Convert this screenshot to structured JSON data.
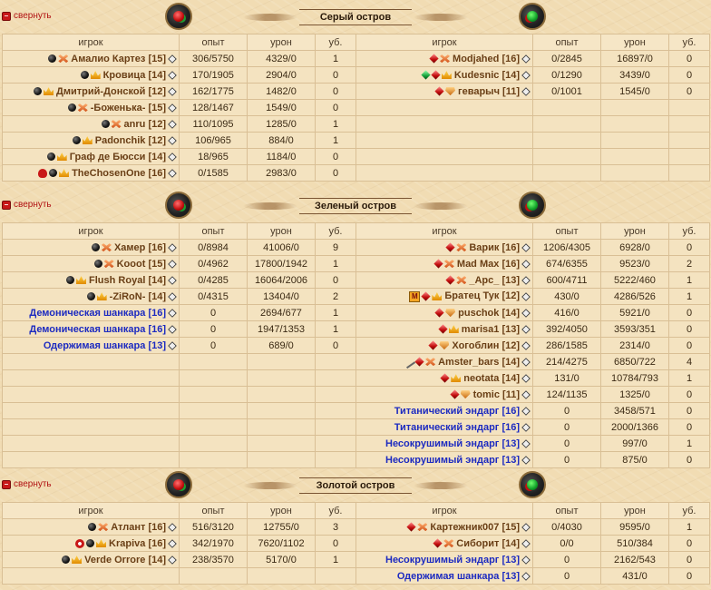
{
  "ui": {
    "collapse_label": "свернуть"
  },
  "columns": {
    "player": "игрок",
    "exp": "опыт",
    "damage": "урон",
    "kills": "уб."
  },
  "sections": [
    {
      "title": "Серый остров",
      "left": [
        {
          "name": "Амалио Картез",
          "level": "[15]",
          "exp": "306/5750",
          "damage": "4329/0",
          "kills": "1",
          "icons": [
            "black"
          ],
          "rank": "cross",
          "kind": "player"
        },
        {
          "name": "Кровица",
          "level": "[14]",
          "exp": "170/1905",
          "damage": "2904/0",
          "kills": "0",
          "icons": [
            "black"
          ],
          "rank": "crown",
          "kind": "player"
        },
        {
          "name": "Дмитрий-Донской",
          "level": "[12]",
          "exp": "162/1775",
          "damage": "1482/0",
          "kills": "0",
          "icons": [
            "black"
          ],
          "rank": "crown",
          "kind": "player"
        },
        {
          "name": "-Боженька-",
          "level": "[15]",
          "exp": "128/1467",
          "damage": "1549/0",
          "kills": "0",
          "icons": [
            "black"
          ],
          "rank": "cross",
          "kind": "player"
        },
        {
          "name": "anru",
          "level": "[12]",
          "exp": "110/1095",
          "damage": "1285/0",
          "kills": "1",
          "icons": [
            "black"
          ],
          "rank": "cross",
          "kind": "player"
        },
        {
          "name": "Padonchik",
          "level": "[12]",
          "exp": "106/965",
          "damage": "884/0",
          "kills": "1",
          "icons": [
            "black"
          ],
          "rank": "crown",
          "kind": "player"
        },
        {
          "name": "Граф де Бюсси",
          "level": "[14]",
          "exp": "18/965",
          "damage": "1184/0",
          "kills": "0",
          "icons": [
            "black"
          ],
          "rank": "crown",
          "kind": "player"
        },
        {
          "name": "TheChosenOne",
          "level": "[16]",
          "exp": "0/1585",
          "damage": "2983/0",
          "kills": "0",
          "icons": [
            "skull",
            "black"
          ],
          "rank": "crown",
          "kind": "player"
        }
      ],
      "right": [
        {
          "name": "Modjahed",
          "level": "[16]",
          "exp": "0/2845",
          "damage": "16897/0",
          "kills": "0",
          "icons": [
            "gem"
          ],
          "rank": "cross",
          "kind": "player"
        },
        {
          "name": "Kudesnic",
          "level": "[14]",
          "exp": "0/1290",
          "damage": "3439/0",
          "kills": "0",
          "icons": [
            "gem-green",
            "gem"
          ],
          "rank": "crown",
          "kind": "player"
        },
        {
          "name": "геварыч",
          "level": "[11]",
          "exp": "0/1001",
          "damage": "1545/0",
          "kills": "0",
          "icons": [
            "gem"
          ],
          "rank": "guard",
          "kind": "player"
        }
      ]
    },
    {
      "title": "Зеленый остров",
      "left": [
        {
          "name": "Хамер",
          "level": "[16]",
          "exp": "0/8984",
          "damage": "41006/0",
          "kills": "9",
          "icons": [
            "black"
          ],
          "rank": "cross",
          "kind": "player"
        },
        {
          "name": "Kooot",
          "level": "[15]",
          "exp": "0/4962",
          "damage": "17800/1942",
          "kills": "1",
          "icons": [
            "black"
          ],
          "rank": "cross",
          "kind": "player"
        },
        {
          "name": "Flush Royal",
          "level": "[14]",
          "exp": "0/4285",
          "damage": "16064/2006",
          "kills": "0",
          "icons": [
            "black"
          ],
          "rank": "crown",
          "kind": "player"
        },
        {
          "name": "-ZiRoN-",
          "level": "[14]",
          "exp": "0/4315",
          "damage": "13404/0",
          "kills": "2",
          "icons": [
            "black"
          ],
          "rank": "crown",
          "kind": "player"
        },
        {
          "name": "Демоническая шанкара",
          "level": "[16]",
          "exp": "0",
          "damage": "2694/677",
          "kills": "1",
          "icons": [],
          "rank": "",
          "kind": "bot"
        },
        {
          "name": "Демоническая шанкара",
          "level": "[16]",
          "exp": "0",
          "damage": "1947/1353",
          "kills": "1",
          "icons": [],
          "rank": "",
          "kind": "bot"
        },
        {
          "name": "Одержимая шанкара",
          "level": "[13]",
          "exp": "0",
          "damage": "689/0",
          "kills": "0",
          "icons": [],
          "rank": "",
          "kind": "bot"
        }
      ],
      "right": [
        {
          "name": "Варик",
          "level": "[16]",
          "exp": "1206/4305",
          "damage": "6928/0",
          "kills": "0",
          "icons": [
            "gem"
          ],
          "rank": "cross",
          "kind": "player"
        },
        {
          "name": "Mad Max",
          "level": "[16]",
          "exp": "674/6355",
          "damage": "9523/0",
          "kills": "2",
          "icons": [
            "gem"
          ],
          "rank": "cross",
          "kind": "player"
        },
        {
          "name": "_Apc_",
          "level": "[13]",
          "exp": "600/4711",
          "damage": "5222/460",
          "kills": "1",
          "icons": [
            "gem"
          ],
          "rank": "cross",
          "kind": "player"
        },
        {
          "name": "Братец Тук",
          "level": "[12]",
          "exp": "430/0",
          "damage": "4286/526",
          "kills": "1",
          "icons": [
            "mbadge",
            "gem"
          ],
          "rank": "crown",
          "kind": "player"
        },
        {
          "name": "puschok",
          "level": "[14]",
          "exp": "416/0",
          "damage": "5921/0",
          "kills": "0",
          "icons": [
            "gem"
          ],
          "rank": "guard",
          "kind": "player"
        },
        {
          "name": "marisa1",
          "level": "[13]",
          "exp": "392/4050",
          "damage": "3593/351",
          "kills": "0",
          "icons": [
            "gem"
          ],
          "rank": "crown",
          "kind": "player"
        },
        {
          "name": "Хогоблин",
          "level": "[12]",
          "exp": "286/1585",
          "damage": "2314/0",
          "kills": "0",
          "icons": [
            "gem"
          ],
          "rank": "guard",
          "kind": "player"
        },
        {
          "name": "Amster_bars",
          "level": "[14]",
          "exp": "214/4275",
          "damage": "6850/722",
          "kills": "4",
          "icons": [
            "quill",
            "gem"
          ],
          "rank": "cross",
          "kind": "player"
        },
        {
          "name": "neotata",
          "level": "[14]",
          "exp": "131/0",
          "damage": "10784/793",
          "kills": "1",
          "icons": [
            "gem"
          ],
          "rank": "crown",
          "kind": "player"
        },
        {
          "name": "tomic",
          "level": "[11]",
          "exp": "124/1135",
          "damage": "1325/0",
          "kills": "0",
          "icons": [
            "gem"
          ],
          "rank": "guard",
          "kind": "player"
        },
        {
          "name": "Титанический эндарг",
          "level": "[16]",
          "exp": "0",
          "damage": "3458/571",
          "kills": "0",
          "icons": [],
          "rank": "",
          "kind": "bot"
        },
        {
          "name": "Титанический эндарг",
          "level": "[16]",
          "exp": "0",
          "damage": "2000/1366",
          "kills": "0",
          "icons": [],
          "rank": "",
          "kind": "bot"
        },
        {
          "name": "Несокрушимый эндарг",
          "level": "[13]",
          "exp": "0",
          "damage": "997/0",
          "kills": "1",
          "icons": [],
          "rank": "",
          "kind": "bot"
        },
        {
          "name": "Несокрушимый эндарг",
          "level": "[13]",
          "exp": "0",
          "damage": "875/0",
          "kills": "0",
          "icons": [],
          "rank": "",
          "kind": "bot"
        }
      ]
    },
    {
      "title": "Золотой остров",
      "left": [
        {
          "name": "Атлант",
          "level": "[16]",
          "exp": "516/3120",
          "damage": "12755/0",
          "kills": "3",
          "icons": [
            "black"
          ],
          "rank": "cross",
          "kind": "player"
        },
        {
          "name": "Krapiva",
          "level": "[16]",
          "exp": "342/1970",
          "damage": "7620/1102",
          "kills": "0",
          "icons": [
            "heart",
            "black"
          ],
          "rank": "crown",
          "kind": "player"
        },
        {
          "name": "Verde Orrore",
          "level": "[14]",
          "exp": "238/3570",
          "damage": "5170/0",
          "kills": "1",
          "icons": [
            "black"
          ],
          "rank": "crown",
          "kind": "player"
        }
      ],
      "right": [
        {
          "name": "Картежник007",
          "level": "[15]",
          "exp": "0/4030",
          "damage": "9595/0",
          "kills": "1",
          "icons": [
            "gem"
          ],
          "rank": "cross",
          "kind": "player"
        },
        {
          "name": "Сиборит",
          "level": "[14]",
          "exp": "0/0",
          "damage": "510/384",
          "kills": "0",
          "icons": [
            "gem"
          ],
          "rank": "cross",
          "kind": "player"
        },
        {
          "name": "Несокрушимый эндарг",
          "level": "[13]",
          "exp": "0",
          "damage": "2162/543",
          "kills": "0",
          "icons": [],
          "rank": "",
          "kind": "bot"
        },
        {
          "name": "Одержимая шанкара",
          "level": "[13]",
          "exp": "0",
          "damage": "431/0",
          "kills": "0",
          "icons": [],
          "rank": "",
          "kind": "bot"
        }
      ]
    }
  ]
}
